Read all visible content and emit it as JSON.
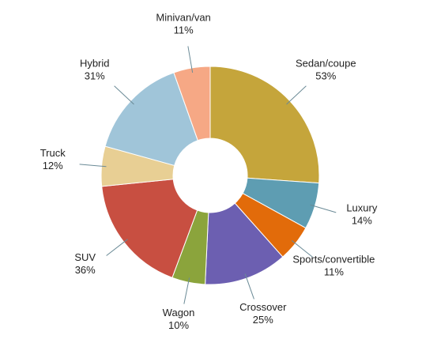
{
  "chart_data": {
    "type": "donut",
    "categories": [
      "Sedan/coupe",
      "Luxury",
      "Sports/convertible",
      "Crossover",
      "Wagon",
      "SUV",
      "Truck",
      "Hybrid",
      "Minivan/van"
    ],
    "values": [
      53,
      14,
      11,
      25,
      10,
      36,
      12,
      31,
      11
    ],
    "value_labels": [
      "53%",
      "14%",
      "11%",
      "25%",
      "10%",
      "36%",
      "12%",
      "31%",
      "11%"
    ],
    "colors": [
      "#c5a53b",
      "#5e9db2",
      "#e26b0a",
      "#6c5fb1",
      "#8ba43c",
      "#c84f41",
      "#e8cf94",
      "#a0c5d9",
      "#f6a885"
    ]
  }
}
